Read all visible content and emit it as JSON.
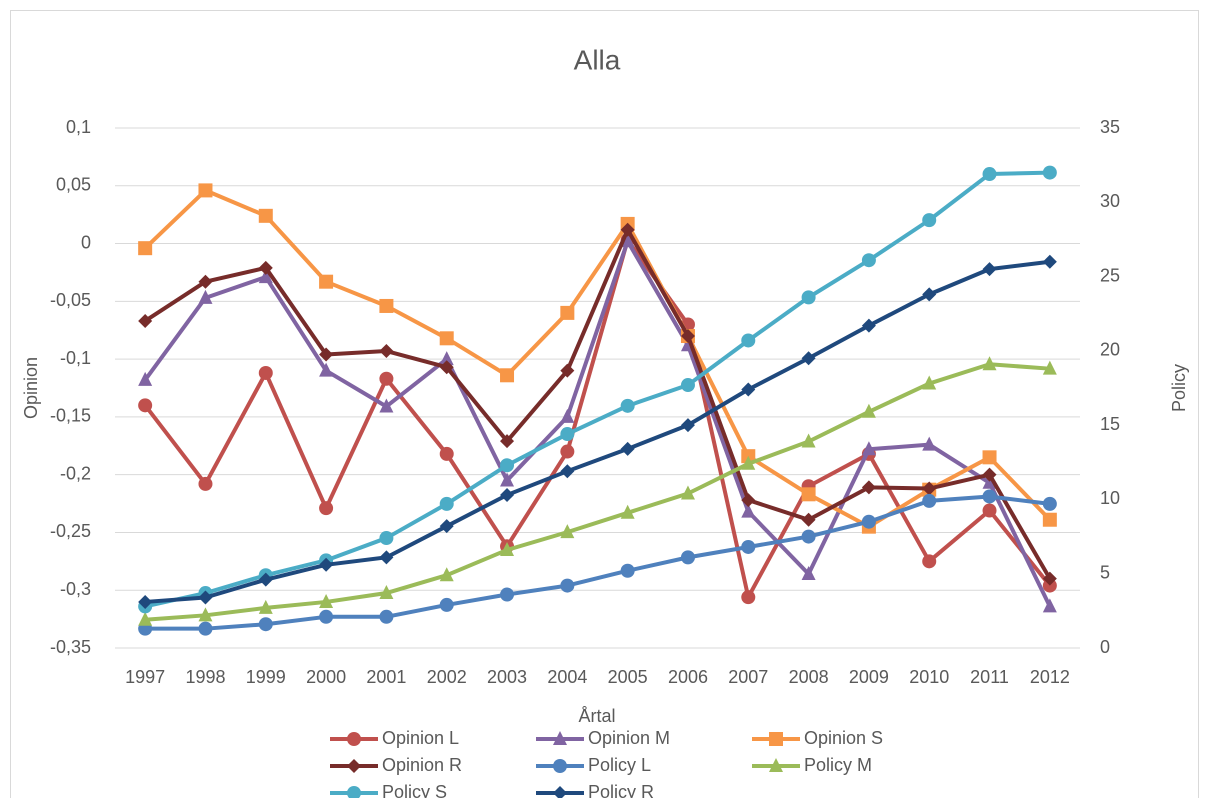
{
  "chart_data": {
    "type": "line",
    "title": "Alla",
    "x_label": "Årtal",
    "y_label": "Opinion",
    "y2_label": "Policy",
    "categories": [
      "1997",
      "1998",
      "1999",
      "2000",
      "2001",
      "2002",
      "2003",
      "2004",
      "2005",
      "2006",
      "2007",
      "2008",
      "2009",
      "2010",
      "2011",
      "2012"
    ],
    "ylim": [
      -0.35,
      0.1
    ],
    "yticks": [
      {
        "value": 0.1,
        "label": "0,1"
      },
      {
        "value": 0.05,
        "label": "0,05"
      },
      0,
      {
        "value": -0.05,
        "label": "-0,05"
      },
      {
        "value": -0.1,
        "label": "-0,1"
      },
      {
        "value": -0.15,
        "label": "-0,15"
      },
      {
        "value": -0.2,
        "label": "-0,2"
      },
      {
        "value": -0.25,
        "label": "-0,25"
      },
      {
        "value": -0.3,
        "label": "-0,3"
      },
      {
        "value": -0.35,
        "label": "-0,35"
      }
    ],
    "y2lim": [
      0,
      35
    ],
    "y2ticks": [
      0,
      5,
      10,
      15,
      20,
      25,
      30,
      35
    ],
    "grid": true,
    "legend": "bottom",
    "series": [
      {
        "name": "Opinion L",
        "color": "#c0504d",
        "marker": "circle",
        "values": [
          -0.14,
          -0.208,
          -0.112,
          -0.229,
          -0.117,
          -0.182,
          -0.262,
          -0.18,
          0.003,
          -0.07,
          -0.306,
          -0.21,
          -0.182,
          -0.275,
          -0.231,
          -0.296
        ]
      },
      {
        "name": "Opinion M",
        "color": "#8064a2",
        "marker": "triangle",
        "values": [
          -0.118,
          -0.047,
          -0.029,
          -0.11,
          -0.141,
          -0.1,
          -0.205,
          -0.15,
          0.002,
          -0.088,
          -0.232,
          -0.286,
          -0.178,
          -0.174,
          -0.207,
          -0.314
        ]
      },
      {
        "name": "Opinion S",
        "color": "#f79646",
        "marker": "square",
        "values": [
          -0.004,
          0.046,
          0.024,
          -0.033,
          -0.054,
          -0.082,
          -0.114,
          -0.06,
          0.017,
          -0.08,
          -0.184,
          -0.217,
          -0.245,
          -0.213,
          -0.185,
          -0.239
        ]
      },
      {
        "name": "Opinion R",
        "color": "#772c2a",
        "marker": "diamond",
        "values": [
          -0.067,
          -0.033,
          -0.021,
          -0.096,
          -0.093,
          -0.107,
          -0.171,
          -0.11,
          0.012,
          -0.08,
          -0.222,
          -0.239,
          -0.211,
          -0.212,
          -0.2,
          -0.29
        ]
      },
      {
        "name": "Policy L",
        "color": "#4f81bd",
        "marker": "circle",
        "axis": "y2",
        "values": [
          1.3,
          1.3,
          1.6,
          2.1,
          2.1,
          2.9,
          3.6,
          4.2,
          5.2,
          6.1,
          6.8,
          7.5,
          8.5,
          9.9,
          10.2,
          9.7
        ]
      },
      {
        "name": "Policy M",
        "color": "#9bbb59",
        "marker": "triangle",
        "axis": "y2",
        "values": [
          1.9,
          2.2,
          2.7,
          3.1,
          3.7,
          4.9,
          6.6,
          7.8,
          9.1,
          10.4,
          12.4,
          13.9,
          15.9,
          17.8,
          19.1,
          18.8
        ]
      },
      {
        "name": "Policy S",
        "color": "#4bacc6",
        "marker": "circle",
        "axis": "y2",
        "values": [
          2.8,
          3.7,
          4.9,
          5.9,
          7.4,
          9.7,
          12.3,
          14.4,
          16.3,
          17.7,
          20.7,
          23.6,
          26.1,
          28.8,
          31.9,
          32.0
        ]
      },
      {
        "name": "Policy R",
        "color": "#1f497d",
        "marker": "diamond",
        "axis": "y2",
        "values": [
          3.1,
          3.4,
          4.6,
          5.6,
          6.1,
          8.2,
          10.3,
          11.9,
          13.4,
          15.0,
          17.4,
          19.5,
          21.7,
          23.8,
          25.5,
          26.0
        ]
      }
    ]
  }
}
